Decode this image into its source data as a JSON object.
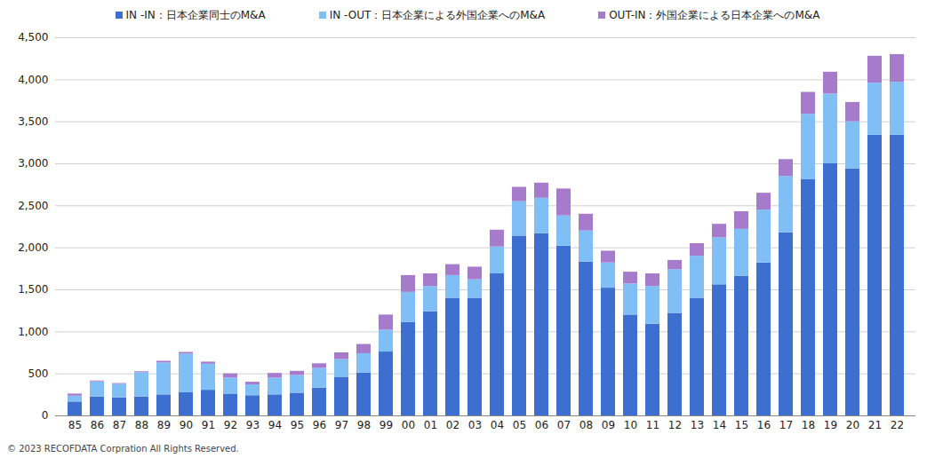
{
  "chart_data": {
    "type": "bar",
    "stacked": true,
    "categories": [
      "85",
      "86",
      "87",
      "88",
      "89",
      "90",
      "91",
      "92",
      "93",
      "94",
      "95",
      "96",
      "97",
      "98",
      "99",
      "00",
      "01",
      "02",
      "03",
      "04",
      "05",
      "06",
      "07",
      "08",
      "09",
      "10",
      "11",
      "12",
      "13",
      "14",
      "15",
      "16",
      "17",
      "18",
      "19",
      "20",
      "21",
      "22"
    ],
    "series": [
      {
        "name": "IN -IN：日本企業同士のM&A",
        "color": "#3d6fd0",
        "values": [
          165,
          225,
          215,
          225,
          250,
          275,
          305,
          260,
          240,
          250,
          270,
          330,
          460,
          510,
          760,
          1110,
          1240,
          1400,
          1400,
          1690,
          2140,
          2170,
          2020,
          1830,
          1520,
          1200,
          1090,
          1220,
          1400,
          1560,
          1660,
          1820,
          2180,
          2810,
          3000,
          2940,
          3340,
          3340
        ]
      },
      {
        "name": "IN -OUT：日本企業による外国企業へのM&A",
        "color": "#80bff5",
        "values": [
          70,
          180,
          160,
          290,
          380,
          460,
          310,
          190,
          130,
          200,
          210,
          235,
          210,
          230,
          260,
          360,
          300,
          270,
          220,
          320,
          410,
          420,
          360,
          370,
          300,
          370,
          450,
          520,
          500,
          560,
          560,
          630,
          670,
          780,
          830,
          560,
          620,
          630
        ]
      },
      {
        "name": "OUT-IN：外国企業による日本企業へのM&A",
        "color": "#a67bcb",
        "values": [
          25,
          10,
          10,
          10,
          20,
          20,
          25,
          50,
          30,
          55,
          50,
          55,
          80,
          110,
          180,
          200,
          150,
          130,
          150,
          200,
          170,
          180,
          320,
          200,
          140,
          140,
          150,
          110,
          150,
          160,
          210,
          200,
          200,
          260,
          260,
          230,
          320,
          330
        ]
      }
    ],
    "ylim": [
      0,
      4500
    ],
    "yticks": [
      0,
      500,
      {
        "value": 1000,
        "label": "1,000"
      },
      {
        "value": 1500,
        "label": "1,500"
      },
      {
        "value": 2000,
        "label": "2,000"
      },
      {
        "value": 2500,
        "label": "2,500"
      },
      {
        "value": 3000,
        "label": "3,000"
      },
      {
        "value": 3500,
        "label": "3,500"
      },
      {
        "value": 4000,
        "label": "4,000"
      },
      {
        "value": 4500,
        "label": "4,500"
      }
    ],
    "grid": true,
    "legend": "top",
    "caption": "© 2023 RECOFDATA Corpration All Rights Reserved."
  }
}
